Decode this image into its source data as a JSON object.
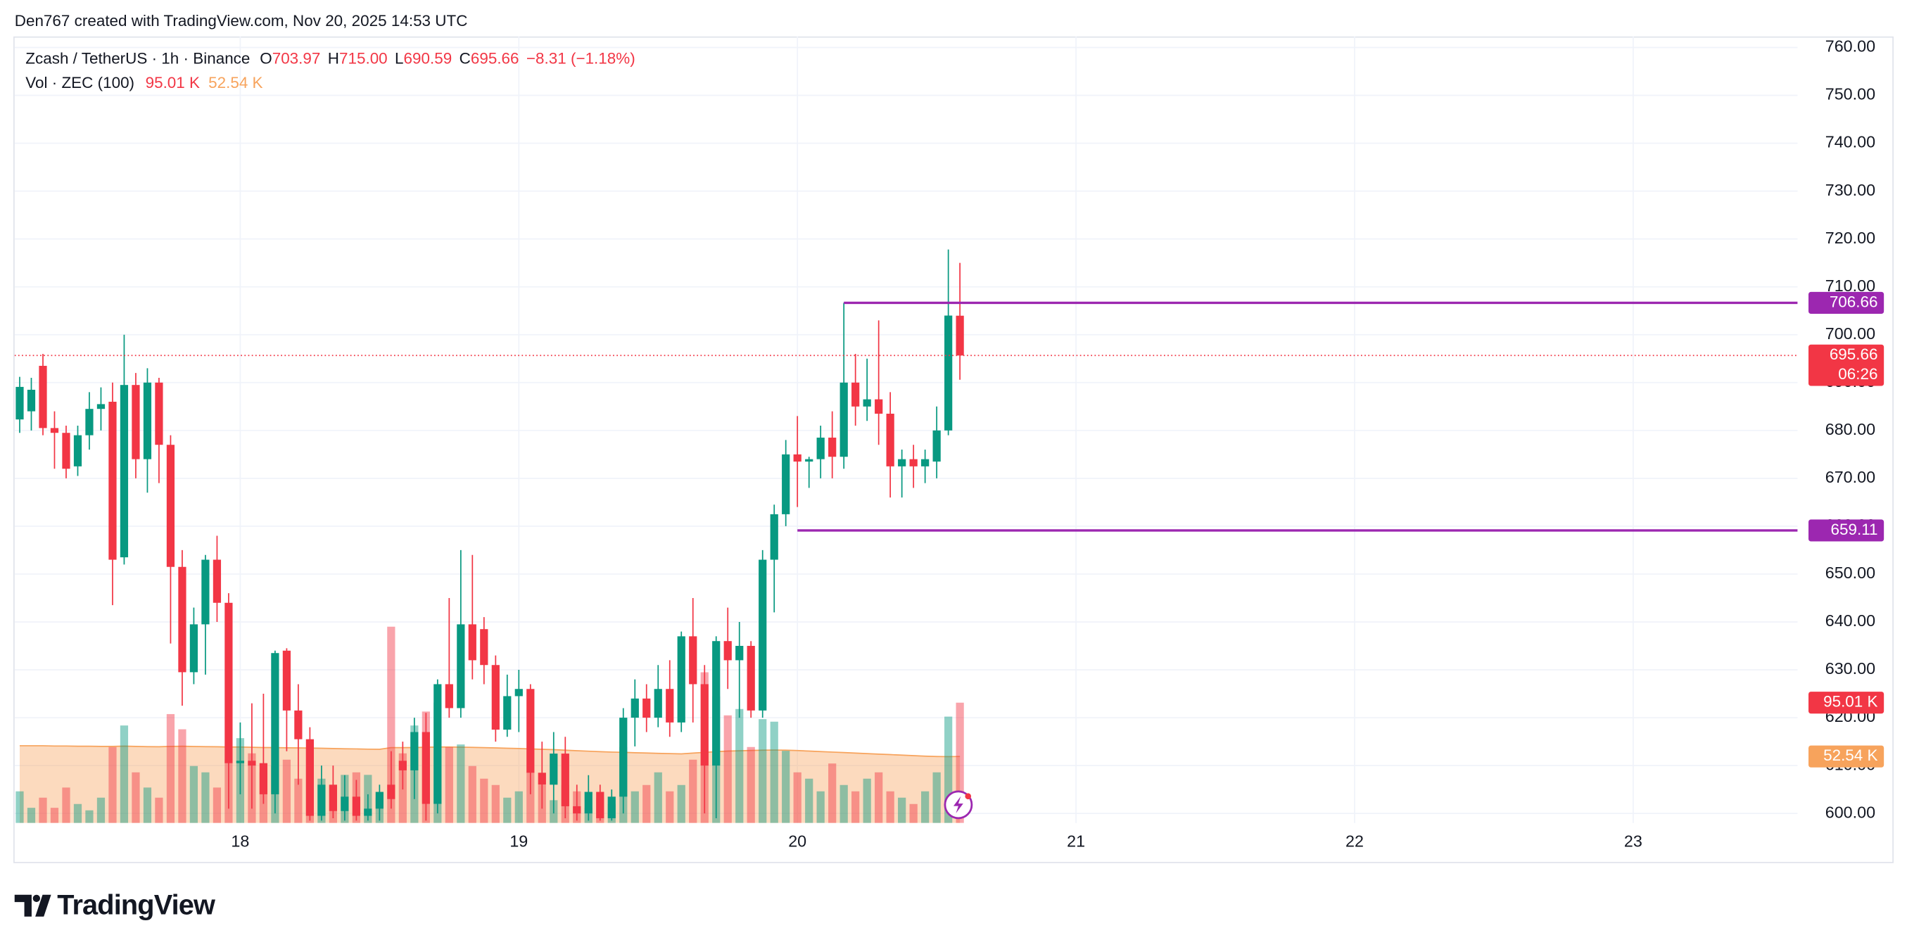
{
  "header": {
    "attribution": "Den767 created with TradingView.com, Nov 20, 2025 14:53 UTC"
  },
  "legend": {
    "symbol": "Zcash / TetherUS · 1h · Binance",
    "ohlc": [
      {
        "key": "O",
        "text": "703.97"
      },
      {
        "key": "H",
        "text": "715.00"
      },
      {
        "key": "L",
        "text": "690.59"
      },
      {
        "key": "C",
        "text": "695.66"
      }
    ],
    "change": "−8.31 (−1.18%)",
    "vol_title": "Vol · ZEC (100)",
    "vol_value": "95.01 K",
    "vol_ma_value": "52.54 K"
  },
  "footer": {
    "brand": "TradingView"
  },
  "chart_data": {
    "type": "candlestick",
    "x": [
      17.2083,
      17.25,
      17.2917,
      17.3333,
      17.375,
      17.4167,
      17.4583,
      17.5,
      17.5417,
      17.5833,
      17.625,
      17.6667,
      17.7083,
      17.75,
      17.7917,
      17.8333,
      17.875,
      17.9167,
      17.9583,
      18,
      18.0417,
      18.0833,
      18.125,
      18.1667,
      18.2083,
      18.25,
      18.2917,
      18.3333,
      18.375,
      18.4167,
      18.4583,
      18.5,
      18.5417,
      18.5833,
      18.625,
      18.6667,
      18.7083,
      18.75,
      18.7917,
      18.8333,
      18.875,
      18.9167,
      18.9583,
      19,
      19.0417,
      19.0833,
      19.125,
      19.1667,
      19.2083,
      19.25,
      19.2917,
      19.3333,
      19.375,
      19.4167,
      19.4583,
      19.5,
      19.5417,
      19.5833,
      19.625,
      19.6667,
      19.7083,
      19.75,
      19.7917,
      19.8333,
      19.875,
      19.9167,
      19.9583,
      20,
      20.0417,
      20.0833,
      20.125,
      20.1667,
      20.2083,
      20.25,
      20.2917,
      20.3333,
      20.375,
      20.4167,
      20.4583,
      20.5,
      20.5417,
      20.5833
    ],
    "open": [
      682.3,
      684,
      693.5,
      680.5,
      679.5,
      672.5,
      679,
      684.5,
      686,
      653.5,
      689.5,
      674,
      690,
      677,
      651.5,
      629.5,
      639.5,
      653,
      644,
      610.5,
      611,
      610.5,
      604,
      634,
      621.5,
      615.5,
      599.5,
      606,
      600.5,
      603.5,
      599.5,
      601,
      606,
      611,
      609,
      617,
      602,
      627,
      622,
      639.5,
      638.5,
      631,
      617.5,
      624.5,
      626,
      608.5,
      606,
      612.5,
      601.5,
      600,
      604.5,
      599,
      603.5,
      620,
      624,
      620,
      626,
      619,
      637,
      627,
      610,
      636,
      632,
      635,
      621.5,
      653,
      662.5,
      675,
      673.5,
      674,
      678.5,
      674.5,
      690,
      685,
      686.5,
      683.5,
      672.5,
      674,
      672.5,
      673.5,
      680,
      703.97
    ],
    "high": [
      691.2,
      691,
      696,
      684,
      681,
      681,
      688,
      689,
      690,
      700,
      692,
      693,
      691,
      679,
      655,
      643,
      654,
      658,
      646,
      619,
      623,
      625,
      634,
      634.5,
      627,
      618,
      610,
      610,
      608,
      607,
      604,
      606,
      613,
      615,
      620,
      621,
      628,
      645,
      655,
      654,
      641,
      633,
      629,
      630,
      627,
      615,
      617,
      616,
      606,
      608,
      606,
      605,
      622,
      628,
      627,
      631,
      632,
      638,
      645,
      631,
      637,
      643,
      640,
      636,
      655,
      664.5,
      678,
      683,
      674.5,
      681,
      684,
      706.66,
      696,
      695,
      703,
      688,
      676,
      677,
      676,
      685,
      717.8,
      715
    ],
    "low": [
      679.5,
      680,
      679,
      672,
      670,
      670.5,
      676,
      680,
      643.5,
      652,
      670,
      667,
      669,
      635.5,
      622.5,
      627,
      629,
      640,
      601,
      604,
      601,
      602,
      600,
      613,
      606,
      598.5,
      598.5,
      599,
      598.5,
      598.5,
      598.5,
      598.5,
      601,
      605,
      603,
      598.5,
      600,
      620,
      620,
      628,
      627,
      615,
      616,
      617,
      604,
      601,
      600,
      599,
      598.5,
      598.5,
      598.5,
      598.5,
      600,
      614,
      617,
      618,
      616,
      617,
      619,
      600,
      599,
      626,
      620,
      620,
      620,
      642,
      660,
      664,
      668,
      670,
      670,
      672,
      681,
      682,
      677,
      666,
      666,
      668,
      669,
      670,
      679,
      690.59
    ],
    "close": [
      689.1,
      688.5,
      680.5,
      679.5,
      672,
      679,
      684.5,
      685.5,
      653,
      689.5,
      674,
      690,
      677,
      651.5,
      629.5,
      639.5,
      653,
      644,
      610.5,
      611,
      610,
      604,
      633.5,
      621.5,
      615.5,
      599.5,
      606,
      600.5,
      603.5,
      599.5,
      601,
      604.5,
      603,
      609,
      617,
      602,
      627,
      622,
      639.5,
      632,
      631,
      617.5,
      624.5,
      626,
      608.5,
      606,
      612.5,
      601.5,
      600,
      604.5,
      599,
      603.5,
      620,
      624,
      620,
      626,
      619,
      637,
      627,
      610,
      636,
      632,
      635,
      621.5,
      653,
      662.5,
      675,
      673.5,
      674,
      678.5,
      674.5,
      690,
      685,
      686.5,
      683.5,
      672.5,
      674,
      672.5,
      674,
      680,
      704,
      695.66
    ],
    "up_color": "#089981",
    "down_color": "#f23645",
    "volume": {
      "axis": "y2",
      "values": [
        25,
        12,
        20,
        12,
        28,
        15,
        10,
        20,
        60,
        77,
        40,
        28,
        20,
        86,
        74,
        45,
        40,
        28,
        50,
        67,
        55,
        40,
        45,
        50,
        35,
        60,
        35,
        30,
        38,
        40,
        38,
        20,
        155,
        55,
        77,
        88,
        95,
        60,
        62,
        45,
        35,
        30,
        20,
        25,
        40,
        30,
        18,
        30,
        25,
        12,
        20,
        15,
        60,
        25,
        30,
        40,
        25,
        30,
        50,
        119,
        100,
        85,
        90,
        60,
        82,
        80,
        57,
        40,
        35,
        25,
        47,
        30,
        25,
        35,
        40,
        25,
        20,
        15,
        25,
        40,
        84,
        95.01
      ],
      "ma": [
        61,
        61,
        61,
        60.8,
        60.8,
        60.6,
        60.6,
        60.5,
        60.5,
        60.7,
        60.5,
        60.3,
        60.2,
        60.5,
        60.6,
        60.4,
        60.3,
        60.2,
        60,
        60,
        59.8,
        59.6,
        59.5,
        59.4,
        59.3,
        59.2,
        59,
        58.8,
        58.6,
        58.5,
        58.3,
        58.2,
        59.5,
        59.5,
        59.6,
        59.8,
        60,
        60,
        59.9,
        59.7,
        59.5,
        59.3,
        59,
        58.8,
        58.5,
        58.2,
        57.9,
        57.5,
        57.1,
        56.7,
        56.3,
        56,
        55.8,
        55.5,
        55.3,
        55,
        54.8,
        54.6,
        55.2,
        55.8,
        56.3,
        56.8,
        57,
        57.3,
        57.5,
        57.6,
        57.5,
        57.2,
        56.8,
        56.4,
        56,
        55.6,
        55.2,
        54.8,
        54.4,
        54,
        53.6,
        53.2,
        52.8,
        52.5,
        52.4,
        52.54
      ],
      "ma_color": "#f7a35c"
    },
    "y2lim": [
      0,
      621
    ],
    "xlim": [
      17.19,
      23.59
    ],
    "xticks": [
      18,
      19,
      20,
      21,
      22,
      23
    ],
    "ylim": [
      598,
      762.3
    ],
    "yticks": [
      {
        "value": 600,
        "label": "600.00"
      },
      {
        "value": 610,
        "label": "610.00"
      },
      {
        "value": 620,
        "label": "620.00"
      },
      {
        "value": 630,
        "label": "630.00"
      },
      {
        "value": 640,
        "label": "640.00"
      },
      {
        "value": 650,
        "label": "650.00"
      },
      {
        "value": 660,
        "label": "660.00"
      },
      {
        "value": 670,
        "label": "670.00"
      },
      {
        "value": 680,
        "label": "680.00"
      },
      {
        "value": 690,
        "label": "690.00"
      },
      {
        "value": 700,
        "label": "700.00"
      },
      {
        "value": 710,
        "label": "710.00"
      },
      {
        "value": 720,
        "label": "720.00"
      },
      {
        "value": 730,
        "label": "730.00"
      },
      {
        "value": 740,
        "label": "740.00"
      },
      {
        "value": 750,
        "label": "750.00"
      },
      {
        "value": 760,
        "label": "760.00"
      }
    ],
    "grid": true,
    "hlines": [
      {
        "value": 706.66,
        "x": 20.1667,
        "color": "#9c27b0"
      },
      {
        "value": 659.11,
        "x": 20,
        "color": "#9c27b0"
      }
    ],
    "countdown": "06:26"
  }
}
